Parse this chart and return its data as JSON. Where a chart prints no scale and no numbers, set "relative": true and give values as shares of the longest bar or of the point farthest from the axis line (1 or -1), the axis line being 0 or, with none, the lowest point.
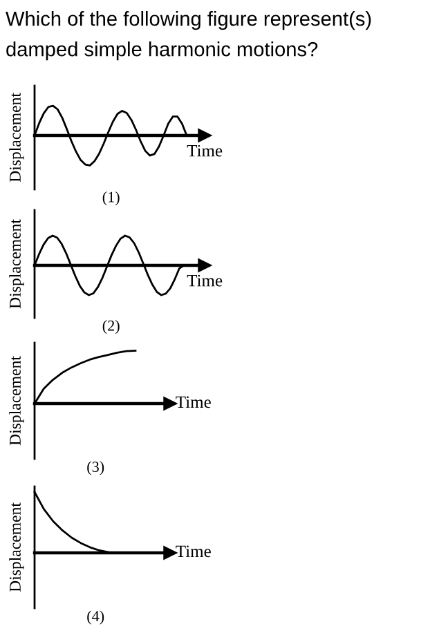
{
  "chart_data": [
    {
      "type": "line",
      "title": "Which of the following figure represent(s) damped simple harmonic motions?",
      "xlabel": "Time",
      "ylabel": "Displacement",
      "annotations": [
        "(1)"
      ],
      "relative": true,
      "categories": [
        null,
        null,
        null,
        null,
        null,
        null,
        null,
        null,
        null,
        null,
        null,
        null,
        null,
        null,
        null,
        null,
        null,
        null,
        null,
        null,
        null,
        null,
        null,
        null,
        null,
        null,
        null,
        null,
        null,
        null,
        null,
        null,
        null,
        null
      ],
      "series": [
        {
          "color": "#000000",
          "values": [
            0,
            0.41,
            0.74,
            0.95,
            0.99,
            0.87,
            0.59,
            0.21,
            -0.19,
            -0.54,
            -0.82,
            -0.97,
            -1.0,
            -0.86,
            -0.61,
            -0.27,
            0.11,
            0.46,
            0.72,
            0.82,
            0.75,
            0.52,
            0.19,
            -0.19,
            -0.51,
            -0.67,
            -0.62,
            -0.37,
            0,
            0.39,
            0.63,
            0.63,
            0.39,
            0
          ]
        }
      ]
    },
    {
      "type": "line",
      "xlabel": "Time",
      "ylabel": "Displacement",
      "annotations": [
        "(2)"
      ],
      "relative": true,
      "categories": [
        null,
        null,
        null,
        null,
        null,
        null,
        null,
        null,
        null,
        null,
        null,
        null,
        null,
        null,
        null,
        null,
        null,
        null,
        null,
        null,
        null,
        null,
        null,
        null,
        null,
        null,
        null,
        null,
        null,
        null,
        null,
        null,
        null,
        null
      ],
      "series": [
        {
          "color": "#000000",
          "values": [
            0,
            0.38,
            0.7,
            0.92,
            1.0,
            0.93,
            0.72,
            0.4,
            0.02,
            -0.36,
            -0.69,
            -0.91,
            -1.0,
            -0.94,
            -0.73,
            -0.42,
            -0.04,
            0.34,
            0.66,
            0.9,
            1.0,
            0.94,
            0.75,
            0.44,
            0.07,
            -0.31,
            -0.64,
            -0.89,
            -1.0,
            -0.95,
            -0.77,
            -0.46,
            -0.1,
            0
          ]
        }
      ]
    },
    {
      "type": "line",
      "xlabel": "Time",
      "ylabel": "Displacement",
      "annotations": [
        "(3)"
      ],
      "relative": true,
      "categories": [
        null,
        null,
        null,
        null,
        null,
        null,
        null,
        null,
        null,
        null,
        null,
        null
      ],
      "series": [
        {
          "color": "#000000",
          "values": [
            0,
            0.28,
            0.45,
            0.58,
            0.68,
            0.76,
            0.83,
            0.88,
            0.92,
            0.96,
            0.99,
            1.0
          ]
        }
      ]
    },
    {
      "type": "line",
      "xlabel": "Time",
      "ylabel": "Displacement",
      "annotations": [
        "(4)"
      ],
      "relative": true,
      "categories": [
        null,
        null,
        null,
        null,
        null,
        null,
        null,
        null,
        null,
        null,
        null
      ],
      "series": [
        {
          "color": "#000000",
          "values": [
            1,
            0.72,
            0.52,
            0.37,
            0.25,
            0.16,
            0.09,
            0.04,
            0.01,
            0,
            0
          ]
        }
      ]
    }
  ]
}
